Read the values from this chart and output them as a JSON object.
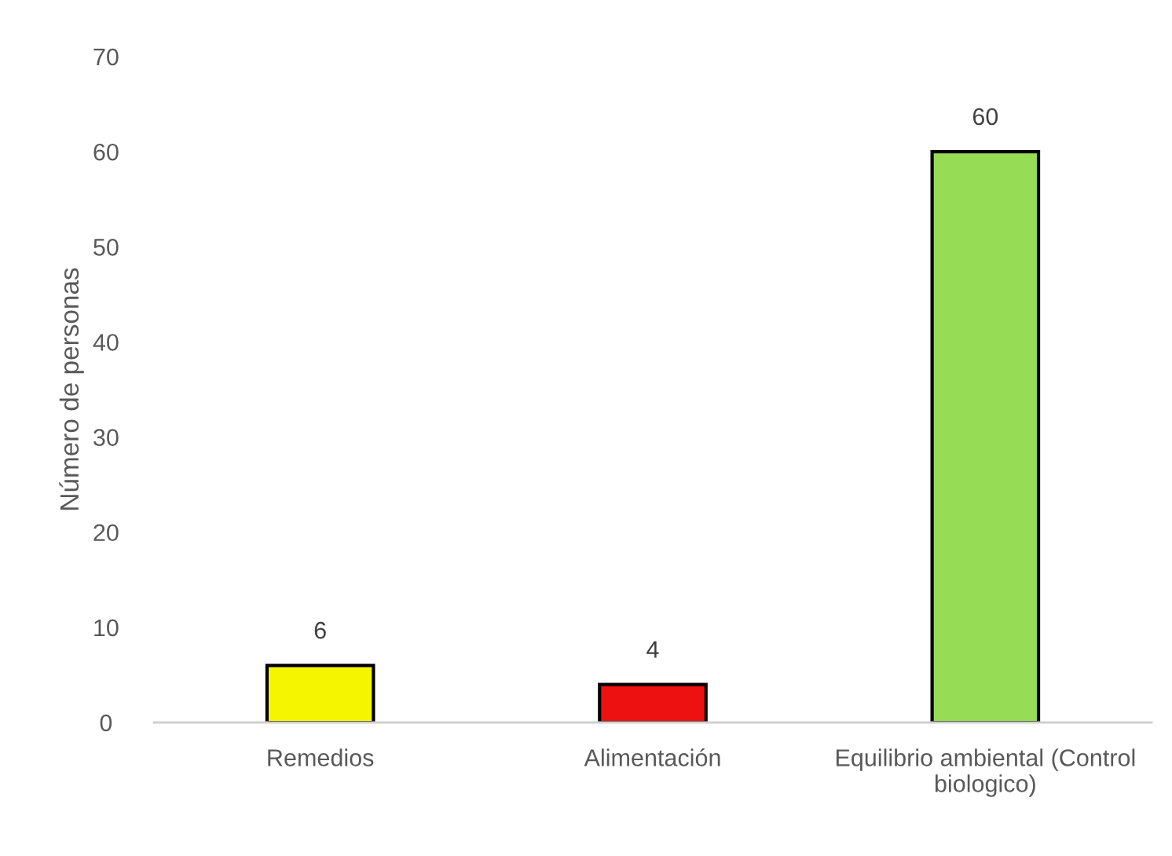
{
  "chart_data": {
    "type": "bar",
    "ylabel": "Número de personas",
    "categories": [
      "Remedios",
      "Alimentación",
      "Equilibrio ambiental (Control biologico)"
    ],
    "values": [
      6,
      4,
      60
    ],
    "colors": [
      "#f5f500",
      "#ee1111",
      "#96dc55"
    ],
    "ylim": [
      0,
      70
    ],
    "yticks": [
      0,
      10,
      20,
      30,
      40,
      50,
      60,
      70
    ],
    "data_labels": true
  }
}
